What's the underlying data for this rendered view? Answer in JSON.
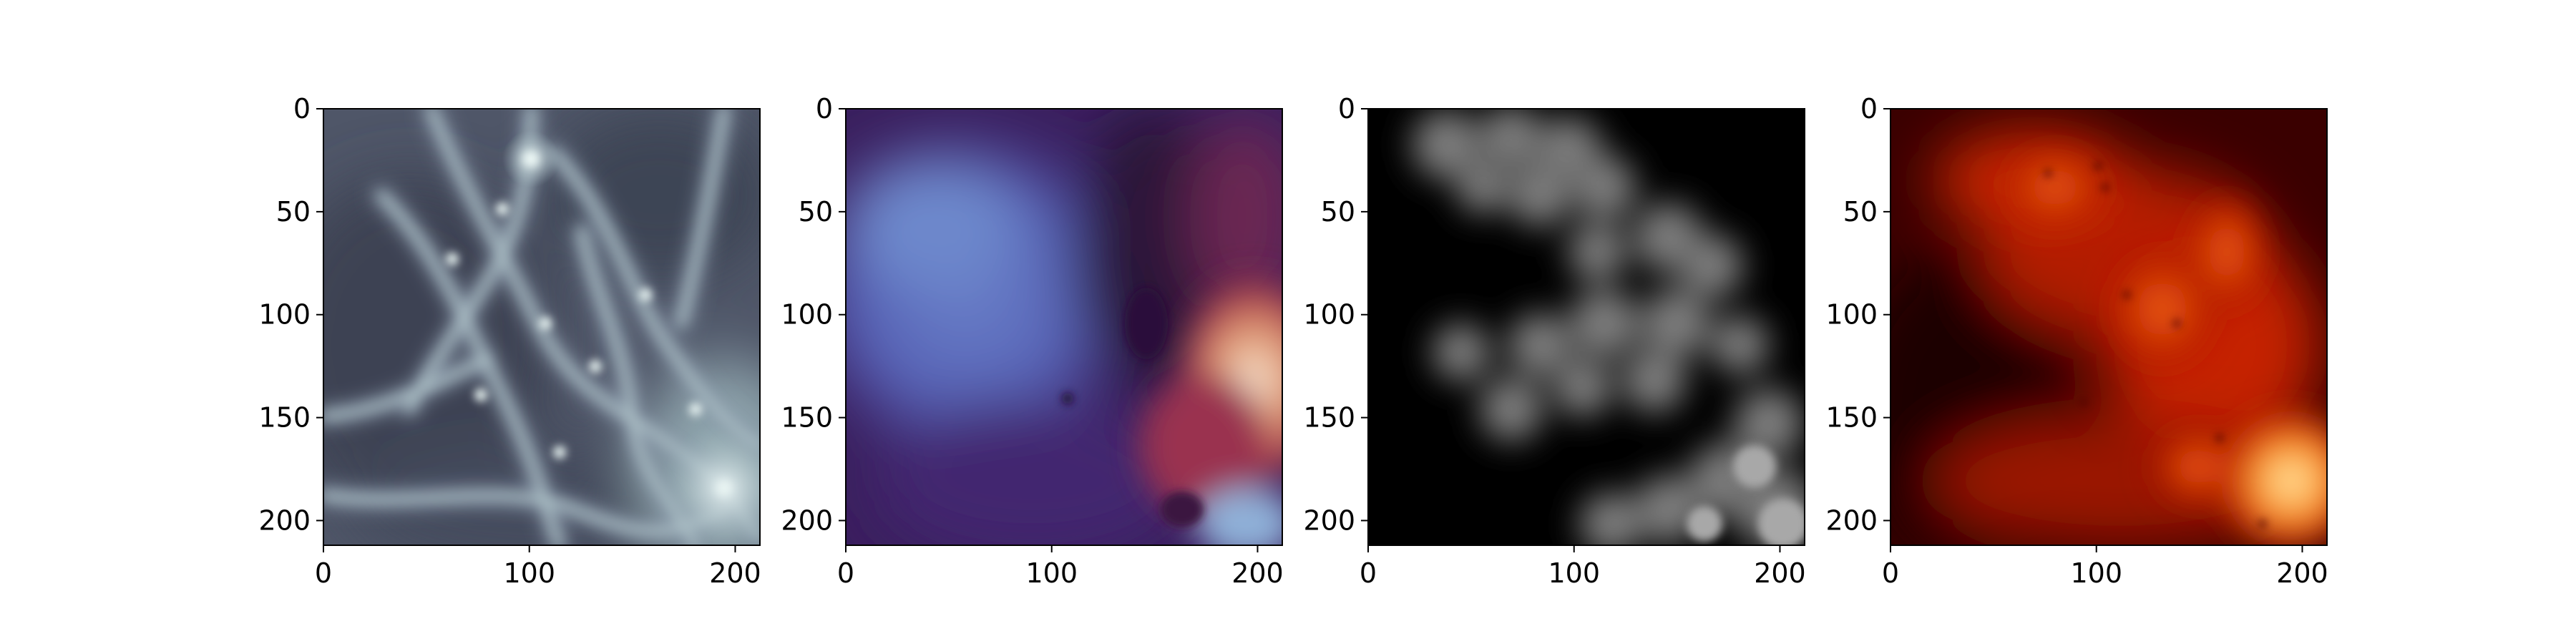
{
  "chart_data": [
    {
      "type": "heatmap",
      "colormap": "bone",
      "x_ticks": [
        0,
        100,
        200
      ],
      "y_ticks": [
        0,
        50,
        100,
        150,
        200
      ],
      "xlim": [
        0,
        212
      ],
      "ylim": [
        212,
        0
      ],
      "grid": false,
      "legend": false
    },
    {
      "type": "heatmap",
      "colormap": "twilight",
      "x_ticks": [
        0,
        100,
        200
      ],
      "y_ticks": [
        0,
        50,
        100,
        150,
        200
      ],
      "xlim": [
        0,
        212
      ],
      "ylim": [
        212,
        0
      ],
      "grid": false,
      "legend": false
    },
    {
      "type": "heatmap",
      "colormap": "gray",
      "x_ticks": [
        0,
        100,
        200
      ],
      "y_ticks": [
        0,
        50,
        100,
        150,
        200
      ],
      "xlim": [
        0,
        212
      ],
      "ylim": [
        212,
        0
      ],
      "grid": false,
      "legend": false
    },
    {
      "type": "heatmap",
      "colormap": "gist_heat",
      "x_ticks": [
        0,
        100,
        200
      ],
      "y_ticks": [
        0,
        50,
        100,
        150,
        200
      ],
      "xlim": [
        0,
        212
      ],
      "ylim": [
        212,
        0
      ],
      "grid": false,
      "legend": false
    }
  ]
}
